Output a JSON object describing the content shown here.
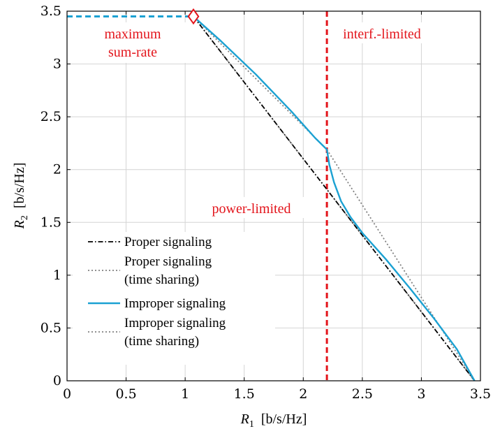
{
  "chart_data": {
    "type": "line",
    "xlabel": {
      "symbol": "R",
      "sub": "1",
      "unit": "[b/s/Hz]"
    },
    "ylabel": {
      "symbol": "R",
      "sub": "2",
      "unit": "[b/s/Hz]"
    },
    "xlim": [
      0,
      3.5
    ],
    "ylim": [
      0,
      3.5
    ],
    "xticks": [
      0,
      0.5,
      1,
      1.5,
      2,
      2.5,
      3,
      3.5
    ],
    "yticks": [
      0,
      0.5,
      1,
      1.5,
      2,
      2.5,
      3,
      3.5
    ],
    "xtick_labels": [
      "0",
      "0.5",
      "1",
      "1.5",
      "2",
      "2.5",
      "3",
      "3.5"
    ],
    "ytick_labels": [
      "0",
      "0.5",
      "1",
      "1.5",
      "2",
      "2.5",
      "3",
      "3.5"
    ],
    "grid": true,
    "legend_position": "bottom-left",
    "series": [
      {
        "name": "Proper signaling",
        "style": "dashdotted",
        "color": "#000000",
        "x": [
          1.07,
          3.45
        ],
        "y": [
          3.45,
          0.0
        ]
      },
      {
        "name": "Proper signaling (time sharing)",
        "legend_lines": [
          "Proper signaling",
          "(time sharing)"
        ],
        "style": "dotted",
        "color": "#808080",
        "x": [
          1.07,
          3.45
        ],
        "y": [
          3.45,
          0.0
        ]
      },
      {
        "name": "Improper signaling",
        "style": "solid",
        "color": "#1ba1d2",
        "x": [
          1.07,
          1.3,
          1.6,
          1.9,
          2.1,
          2.2,
          2.22,
          2.26,
          2.32,
          2.4,
          2.5,
          2.7,
          2.9,
          3.1,
          3.3,
          3.45
        ],
        "y": [
          3.45,
          3.22,
          2.9,
          2.55,
          2.3,
          2.19,
          2.05,
          1.88,
          1.7,
          1.55,
          1.4,
          1.15,
          0.88,
          0.6,
          0.3,
          0.0
        ]
      },
      {
        "name": "Improper signaling (time sharing)",
        "legend_lines": [
          "Improper signaling",
          "(time sharing)"
        ],
        "style": "dotted",
        "color": "#808080",
        "x": [
          1.07,
          2.2,
          3.45
        ],
        "y": [
          3.45,
          2.19,
          0.0
        ]
      }
    ],
    "reference_lines": [
      {
        "kind": "vertical",
        "x": 2.2,
        "style": "dashed",
        "color": "#e3141b"
      },
      {
        "kind": "horizontal",
        "y": 3.45,
        "x_range": [
          0,
          1.07
        ],
        "style": "dashed",
        "color": "#1ba1d2"
      }
    ],
    "markers": [
      {
        "shape": "diamond",
        "x": 1.07,
        "y": 3.45,
        "color": "#e3141b"
      }
    ],
    "annotations": [
      {
        "lines": [
          "maximum",
          "sum-rate"
        ],
        "color": "#e3141b"
      },
      {
        "lines": [
          "interf.-limited"
        ],
        "color": "#e3141b"
      },
      {
        "lines": [
          "power-limited"
        ],
        "color": "#e3141b"
      }
    ]
  }
}
